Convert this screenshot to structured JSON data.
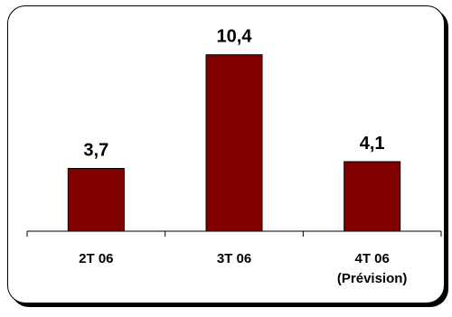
{
  "chart_data": {
    "type": "bar",
    "categories": [
      [
        "2T 06"
      ],
      [
        "3T 06"
      ],
      [
        "4T 06",
        "(Prévision)"
      ]
    ],
    "values": [
      3.7,
      10.4,
      4.1
    ],
    "value_labels": [
      "3,7",
      "10,4",
      "4,1"
    ],
    "title": "",
    "xlabel": "",
    "ylabel": "",
    "ylim": [
      0,
      11.5
    ],
    "grid": false,
    "legend": "none",
    "colors": {
      "bar": "#800000",
      "bar_stroke": "#000000",
      "text": "#000000",
      "background": "#ffffff"
    }
  }
}
